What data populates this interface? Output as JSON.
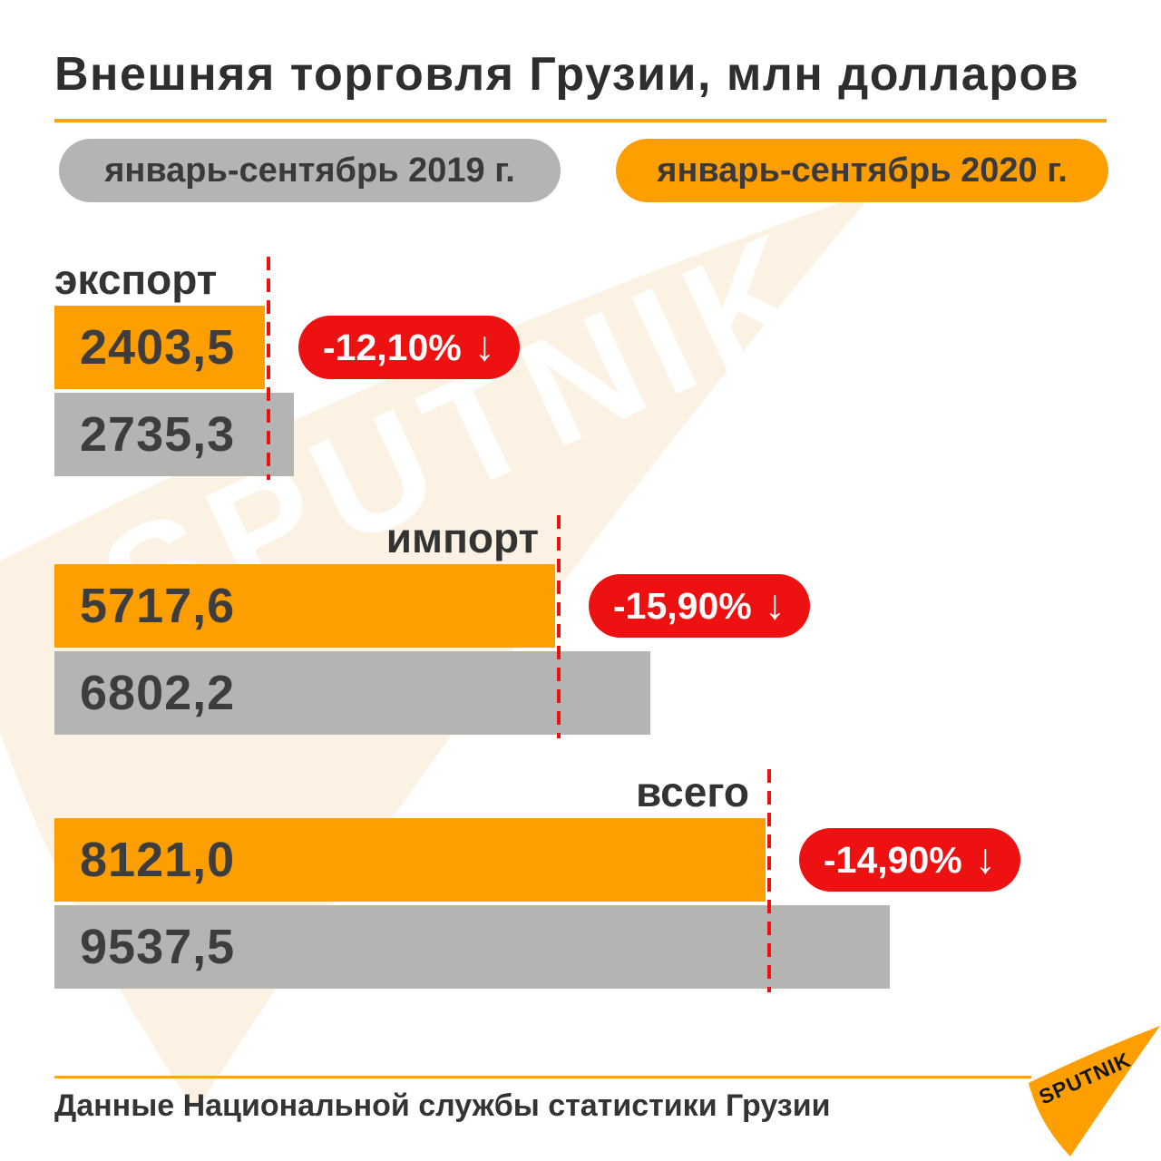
{
  "title": "Внешняя торговля Грузии, млн долларов",
  "legend": {
    "y2019": "январь-сентябрь 2019 г.",
    "y2020": "январь-сентябрь 2020 г."
  },
  "source": "Данные Национальной службы статистики Грузии",
  "brand": "SPUTNIK",
  "watermark": "SPUTNIK",
  "colors": {
    "orange": "#fe9f01",
    "gray": "#b4b4b2",
    "red": "#ee1111",
    "dark": "#2e2e2e",
    "cream": "#fcf2e4",
    "rule": "#f9a51a"
  },
  "chart_data": {
    "type": "bar",
    "orientation": "horizontal",
    "title": "Внешняя торговля Грузии, млн долларов",
    "unit": "млн долларов",
    "categories": [
      "экспорт",
      "импорт",
      "всего"
    ],
    "series": [
      {
        "name": "январь-сентябрь 2020 г.",
        "color": "#fe9f01",
        "values": [
          2403.5,
          5717.6,
          8121.0
        ],
        "display": [
          "2403,5",
          "5717,6",
          "8121,0"
        ]
      },
      {
        "name": "январь-сентябрь 2019 г.",
        "color": "#b4b4b2",
        "values": [
          2735.3,
          6802.2,
          9537.5
        ],
        "display": [
          "2735,3",
          "6802,2",
          "9537,5"
        ]
      }
    ],
    "change": [
      "-12,10%",
      "-15,90%",
      "-14,90%"
    ],
    "arrow": "↓",
    "xlim": [
      0,
      9537.5
    ],
    "value_labels_inside": true,
    "legend_position": "top"
  }
}
